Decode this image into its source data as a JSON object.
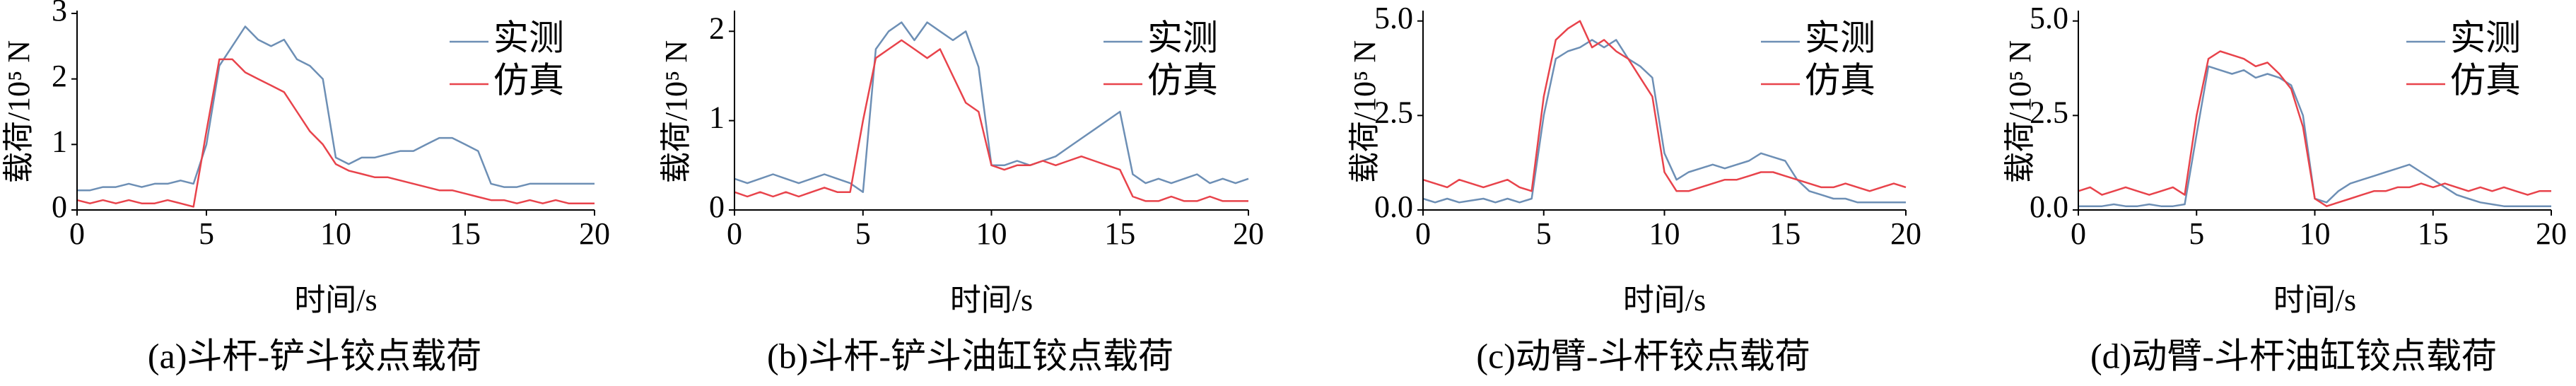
{
  "chart_data": [
    {
      "type": "line",
      "caption": "(a)斗杆-铲斗铰点载荷",
      "xlabel": "时间/s",
      "ylabel": "载荷/10⁵ N",
      "legend": "upper right",
      "grid": false,
      "xlim": [
        0,
        20
      ],
      "xticks": [
        0,
        5,
        10,
        15,
        20
      ],
      "ylim": [
        0,
        3
      ],
      "yticks": [
        0,
        1,
        2,
        3
      ],
      "x": [
        0,
        0.5,
        1,
        1.5,
        2,
        2.5,
        3,
        3.5,
        4,
        4.5,
        5,
        5.5,
        6,
        6.5,
        7,
        7.5,
        8,
        8.5,
        9,
        9.5,
        10,
        10.5,
        11,
        11.5,
        12,
        12.5,
        13,
        13.5,
        14,
        14.5,
        15,
        15.5,
        16,
        16.5,
        17,
        17.5,
        18,
        18.5,
        19,
        19.5,
        20
      ],
      "series": [
        {
          "name": "实测",
          "color": "#6d8fb5",
          "values": [
            0.3,
            0.3,
            0.35,
            0.35,
            0.4,
            0.35,
            0.4,
            0.4,
            0.45,
            0.4,
            1.0,
            2.2,
            2.5,
            2.8,
            2.6,
            2.5,
            2.6,
            2.3,
            2.2,
            2.0,
            0.8,
            0.7,
            0.8,
            0.8,
            0.85,
            0.9,
            0.9,
            1.0,
            1.1,
            1.1,
            1.0,
            0.9,
            0.4,
            0.35,
            0.35,
            0.4,
            0.4,
            0.4,
            0.4,
            0.4,
            0.4
          ]
        },
        {
          "name": "仿真",
          "color": "#e8434b",
          "values": [
            0.15,
            0.1,
            0.15,
            0.1,
            0.15,
            0.1,
            0.1,
            0.15,
            0.1,
            0.05,
            1.2,
            2.3,
            2.3,
            2.1,
            2.0,
            1.9,
            1.8,
            1.5,
            1.2,
            1.0,
            0.7,
            0.6,
            0.55,
            0.5,
            0.5,
            0.45,
            0.4,
            0.35,
            0.3,
            0.3,
            0.25,
            0.2,
            0.15,
            0.15,
            0.1,
            0.15,
            0.1,
            0.15,
            0.1,
            0.1,
            0.1
          ]
        }
      ]
    },
    {
      "type": "line",
      "caption": "(b)斗杆-铲斗油缸铰点载荷",
      "xlabel": "时间/s",
      "ylabel": "载荷/10⁵ N",
      "legend": "upper right",
      "grid": false,
      "xlim": [
        0,
        20
      ],
      "xticks": [
        0,
        5,
        10,
        15,
        20
      ],
      "ylim": [
        0,
        2.2
      ],
      "yticks": [
        0,
        1,
        2
      ],
      "x": [
        0,
        0.5,
        1,
        1.5,
        2,
        2.5,
        3,
        3.5,
        4,
        4.5,
        5,
        5.5,
        6,
        6.5,
        7,
        7.5,
        8,
        8.5,
        9,
        9.5,
        10,
        10.5,
        11,
        11.5,
        12,
        12.5,
        13,
        13.5,
        14,
        14.5,
        15,
        15.5,
        16,
        16.5,
        17,
        17.5,
        18,
        18.5,
        19,
        19.5,
        20
      ],
      "series": [
        {
          "name": "实测",
          "color": "#6d8fb5",
          "values": [
            0.35,
            0.3,
            0.35,
            0.4,
            0.35,
            0.3,
            0.35,
            0.4,
            0.35,
            0.3,
            0.2,
            1.8,
            2.0,
            2.1,
            1.9,
            2.1,
            2.0,
            1.9,
            2.0,
            1.6,
            0.5,
            0.5,
            0.55,
            0.5,
            0.55,
            0.6,
            0.7,
            0.8,
            0.9,
            1.0,
            1.1,
            0.4,
            0.3,
            0.35,
            0.3,
            0.35,
            0.4,
            0.3,
            0.35,
            0.3,
            0.35
          ]
        },
        {
          "name": "仿真",
          "color": "#e8434b",
          "values": [
            0.2,
            0.15,
            0.2,
            0.15,
            0.2,
            0.15,
            0.2,
            0.25,
            0.2,
            0.2,
            1.0,
            1.7,
            1.8,
            1.9,
            1.8,
            1.7,
            1.8,
            1.5,
            1.2,
            1.1,
            0.5,
            0.45,
            0.5,
            0.5,
            0.55,
            0.5,
            0.55,
            0.6,
            0.55,
            0.5,
            0.45,
            0.15,
            0.1,
            0.1,
            0.15,
            0.1,
            0.1,
            0.15,
            0.1,
            0.1,
            0.1
          ]
        }
      ]
    },
    {
      "type": "line",
      "caption": "(c)动臂-斗杆铰点载荷",
      "xlabel": "时间/s",
      "ylabel": "载荷/10⁵ N",
      "legend": "upper right",
      "grid": false,
      "xlim": [
        0,
        20
      ],
      "xticks": [
        0,
        5,
        10,
        15,
        20
      ],
      "ylim": [
        0,
        5.2
      ],
      "yticks": [
        {
          "value": 0,
          "label": "0.0"
        },
        {
          "value": 2.5,
          "label": "2.5"
        },
        {
          "value": 5,
          "label": "5.0"
        }
      ],
      "x": [
        0,
        0.5,
        1,
        1.5,
        2,
        2.5,
        3,
        3.5,
        4,
        4.5,
        5,
        5.5,
        6,
        6.5,
        7,
        7.5,
        8,
        8.5,
        9,
        9.5,
        10,
        10.5,
        11,
        11.5,
        12,
        12.5,
        13,
        13.5,
        14,
        14.5,
        15,
        15.5,
        16,
        16.5,
        17,
        17.5,
        18,
        18.5,
        19,
        19.5,
        20
      ],
      "series": [
        {
          "name": "实测",
          "color": "#6d8fb5",
          "values": [
            0.3,
            0.2,
            0.3,
            0.2,
            0.25,
            0.3,
            0.2,
            0.3,
            0.2,
            0.3,
            2.5,
            4.0,
            4.2,
            4.3,
            4.5,
            4.3,
            4.5,
            4.0,
            3.8,
            3.5,
            1.5,
            0.8,
            1.0,
            1.1,
            1.2,
            1.1,
            1.2,
            1.3,
            1.5,
            1.4,
            1.3,
            0.8,
            0.5,
            0.4,
            0.3,
            0.3,
            0.2,
            0.2,
            0.2,
            0.2,
            0.2
          ]
        },
        {
          "name": "仿真",
          "color": "#e8434b",
          "values": [
            0.8,
            0.7,
            0.6,
            0.8,
            0.7,
            0.6,
            0.7,
            0.8,
            0.6,
            0.5,
            3.0,
            4.5,
            4.8,
            5.0,
            4.3,
            4.5,
            4.2,
            4.0,
            3.5,
            3.0,
            1.0,
            0.5,
            0.5,
            0.6,
            0.7,
            0.8,
            0.8,
            0.9,
            1.0,
            1.0,
            0.9,
            0.8,
            0.7,
            0.6,
            0.6,
            0.7,
            0.6,
            0.5,
            0.6,
            0.7,
            0.6
          ]
        }
      ]
    },
    {
      "type": "line",
      "caption": "(d)动臂-斗杆油缸铰点载荷",
      "xlabel": "时间/s",
      "ylabel": "载荷/10⁵ N",
      "legend": "upper right",
      "grid": false,
      "xlim": [
        0,
        20
      ],
      "xticks": [
        0,
        5,
        10,
        15,
        20
      ],
      "ylim": [
        0,
        5.2
      ],
      "yticks": [
        {
          "value": 0,
          "label": "0.0"
        },
        {
          "value": 2.5,
          "label": "2.5"
        },
        {
          "value": 5,
          "label": "5.0"
        }
      ],
      "x": [
        0,
        0.5,
        1,
        1.5,
        2,
        2.5,
        3,
        3.5,
        4,
        4.5,
        5,
        5.5,
        6,
        6.5,
        7,
        7.5,
        8,
        8.5,
        9,
        9.5,
        10,
        10.5,
        11,
        11.5,
        12,
        12.5,
        13,
        13.5,
        14,
        14.5,
        15,
        15.5,
        16,
        16.5,
        17,
        17.5,
        18,
        18.5,
        19,
        19.5,
        20
      ],
      "series": [
        {
          "name": "实测",
          "color": "#6d8fb5",
          "values": [
            0.1,
            0.1,
            0.1,
            0.15,
            0.1,
            0.1,
            0.15,
            0.1,
            0.1,
            0.15,
            2.0,
            3.8,
            3.7,
            3.6,
            3.7,
            3.5,
            3.6,
            3.5,
            3.3,
            2.5,
            0.3,
            0.2,
            0.5,
            0.7,
            0.8,
            0.9,
            1.0,
            1.1,
            1.2,
            1.0,
            0.8,
            0.6,
            0.4,
            0.3,
            0.2,
            0.15,
            0.1,
            0.1,
            0.1,
            0.1,
            0.1
          ]
        },
        {
          "name": "仿真",
          "color": "#e8434b",
          "values": [
            0.5,
            0.6,
            0.4,
            0.5,
            0.6,
            0.5,
            0.4,
            0.5,
            0.6,
            0.4,
            2.5,
            4.0,
            4.2,
            4.1,
            4.0,
            3.8,
            3.9,
            3.6,
            3.2,
            2.2,
            0.3,
            0.1,
            0.2,
            0.3,
            0.4,
            0.5,
            0.5,
            0.6,
            0.6,
            0.7,
            0.6,
            0.7,
            0.6,
            0.5,
            0.6,
            0.5,
            0.6,
            0.5,
            0.4,
            0.5,
            0.5
          ]
        }
      ]
    }
  ]
}
